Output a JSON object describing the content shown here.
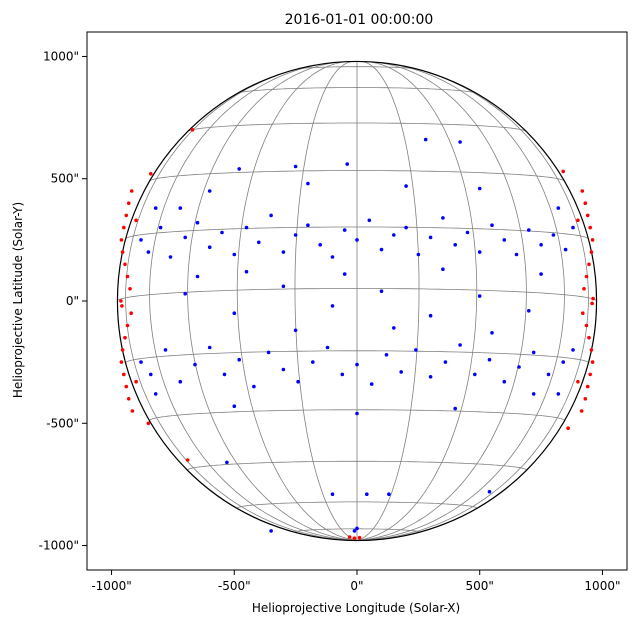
{
  "chart_data": {
    "type": "scatter",
    "title": "2016-01-01 00:00:00",
    "xlabel": "Helioprojective Longitude (Solar-X)",
    "ylabel": "Helioprojective Latitude (Solar-Y)",
    "xlim": [
      -1100,
      1100
    ],
    "ylim": [
      -1100,
      1100
    ],
    "solar_radius_arcsec": 976,
    "x_ticks": [
      {
        "value": -1000,
        "label": "-1000\""
      },
      {
        "value": -500,
        "label": "-500\""
      },
      {
        "value": 0,
        "label": "0\""
      },
      {
        "value": 500,
        "label": "500\""
      },
      {
        "value": 1000,
        "label": "1000\""
      }
    ],
    "y_ticks": [
      {
        "value": 1000,
        "label": "1000\""
      },
      {
        "value": 500,
        "label": "500\""
      },
      {
        "value": 0,
        "label": "0\""
      },
      {
        "value": -500,
        "label": "-500\""
      },
      {
        "value": -1000,
        "label": "-1000\""
      }
    ],
    "grid": "heliographic",
    "colors": {
      "visible_points": "#0000ff",
      "limb_points": "#ff0000",
      "limb": "#000000",
      "grid": "#808080"
    },
    "series": [
      {
        "color": "#0000ff",
        "points": [
          [
            -880,
            250
          ],
          [
            -850,
            200
          ],
          [
            -800,
            300
          ],
          [
            -760,
            180
          ],
          [
            -700,
            260
          ],
          [
            -650,
            320
          ],
          [
            -600,
            220
          ],
          [
            -550,
            280
          ],
          [
            -500,
            190
          ],
          [
            -450,
            300
          ],
          [
            -400,
            240
          ],
          [
            -350,
            350
          ],
          [
            -300,
            200
          ],
          [
            -250,
            270
          ],
          [
            -200,
            310
          ],
          [
            -150,
            230
          ],
          [
            -100,
            180
          ],
          [
            -50,
            290
          ],
          [
            0,
            250
          ],
          [
            50,
            330
          ],
          [
            100,
            210
          ],
          [
            150,
            270
          ],
          [
            200,
            300
          ],
          [
            250,
            190
          ],
          [
            300,
            260
          ],
          [
            350,
            340
          ],
          [
            400,
            230
          ],
          [
            450,
            280
          ],
          [
            500,
            200
          ],
          [
            550,
            310
          ],
          [
            600,
            250
          ],
          [
            650,
            190
          ],
          [
            700,
            290
          ],
          [
            750,
            230
          ],
          [
            800,
            270
          ],
          [
            850,
            210
          ],
          [
            880,
            300
          ],
          [
            -880,
            -250
          ],
          [
            -840,
            -300
          ],
          [
            -780,
            -200
          ],
          [
            -720,
            -330
          ],
          [
            -660,
            -260
          ],
          [
            -600,
            -190
          ],
          [
            -540,
            -300
          ],
          [
            -480,
            -240
          ],
          [
            -420,
            -350
          ],
          [
            -360,
            -210
          ],
          [
            -300,
            -280
          ],
          [
            -240,
            -330
          ],
          [
            -180,
            -250
          ],
          [
            -120,
            -190
          ],
          [
            -60,
            -300
          ],
          [
            0,
            -260
          ],
          [
            60,
            -340
          ],
          [
            120,
            -220
          ],
          [
            180,
            -290
          ],
          [
            240,
            -200
          ],
          [
            300,
            -310
          ],
          [
            360,
            -250
          ],
          [
            420,
            -180
          ],
          [
            480,
            -300
          ],
          [
            540,
            -240
          ],
          [
            600,
            -330
          ],
          [
            660,
            -270
          ],
          [
            720,
            -210
          ],
          [
            780,
            -300
          ],
          [
            840,
            -250
          ],
          [
            880,
            -200
          ],
          [
            -700,
            30
          ],
          [
            -500,
            -50
          ],
          [
            -300,
            60
          ],
          [
            -100,
            -20
          ],
          [
            100,
            40
          ],
          [
            300,
            -60
          ],
          [
            500,
            20
          ],
          [
            700,
            -40
          ],
          [
            -600,
            450
          ],
          [
            -200,
            480
          ],
          [
            200,
            470
          ],
          [
            500,
            460
          ],
          [
            -500,
            -430
          ],
          [
            0,
            -460
          ],
          [
            400,
            -440
          ],
          [
            -100,
            -790
          ],
          [
            40,
            -790
          ],
          [
            130,
            -790
          ],
          [
            -530,
            -660
          ],
          [
            540,
            -780
          ],
          [
            -350,
            -940
          ],
          [
            -10,
            -940
          ],
          [
            0,
            -930
          ],
          [
            -720,
            380
          ],
          [
            720,
            -380
          ],
          [
            -650,
            100
          ],
          [
            -450,
            120
          ],
          [
            -250,
            -120
          ],
          [
            -50,
            110
          ],
          [
            150,
            -110
          ],
          [
            350,
            130
          ],
          [
            550,
            -130
          ],
          [
            750,
            110
          ],
          [
            -820,
            380
          ],
          [
            820,
            380
          ],
          [
            -820,
            -380
          ],
          [
            820,
            -380
          ],
          [
            280,
            660
          ],
          [
            420,
            650
          ],
          [
            -40,
            560
          ],
          [
            -250,
            550
          ],
          [
            -480,
            540
          ]
        ]
      },
      {
        "color": "#ff0000",
        "points": [
          [
            -960,
            250
          ],
          [
            -955,
            200
          ],
          [
            -950,
            300
          ],
          [
            -945,
            150
          ],
          [
            -940,
            350
          ],
          [
            -935,
            100
          ],
          [
            -930,
            400
          ],
          [
            -925,
            50
          ],
          [
            -918,
            450
          ],
          [
            -960,
            -250
          ],
          [
            -955,
            -200
          ],
          [
            -950,
            -300
          ],
          [
            -945,
            -150
          ],
          [
            -940,
            -350
          ],
          [
            -935,
            -100
          ],
          [
            -930,
            -400
          ],
          [
            -920,
            -50
          ],
          [
            -915,
            -450
          ],
          [
            960,
            250
          ],
          [
            955,
            200
          ],
          [
            950,
            300
          ],
          [
            945,
            150
          ],
          [
            940,
            350
          ],
          [
            935,
            100
          ],
          [
            930,
            400
          ],
          [
            925,
            50
          ],
          [
            918,
            450
          ],
          [
            960,
            -250
          ],
          [
            955,
            -200
          ],
          [
            950,
            -300
          ],
          [
            945,
            -150
          ],
          [
            940,
            -350
          ],
          [
            935,
            -100
          ],
          [
            930,
            -400
          ],
          [
            920,
            -50
          ],
          [
            915,
            -450
          ],
          [
            -670,
            700
          ],
          [
            -690,
            -650
          ],
          [
            -10,
            -970
          ],
          [
            -30,
            -965
          ],
          [
            10,
            -968
          ],
          [
            -840,
            520
          ],
          [
            840,
            530
          ],
          [
            -850,
            -500
          ],
          [
            860,
            -520
          ],
          [
            -962,
            0
          ],
          [
            962,
            10
          ],
          [
            -958,
            -20
          ],
          [
            958,
            -10
          ],
          [
            -900,
            330
          ],
          [
            900,
            330
          ],
          [
            -900,
            -330
          ],
          [
            900,
            -330
          ]
        ]
      }
    ]
  }
}
